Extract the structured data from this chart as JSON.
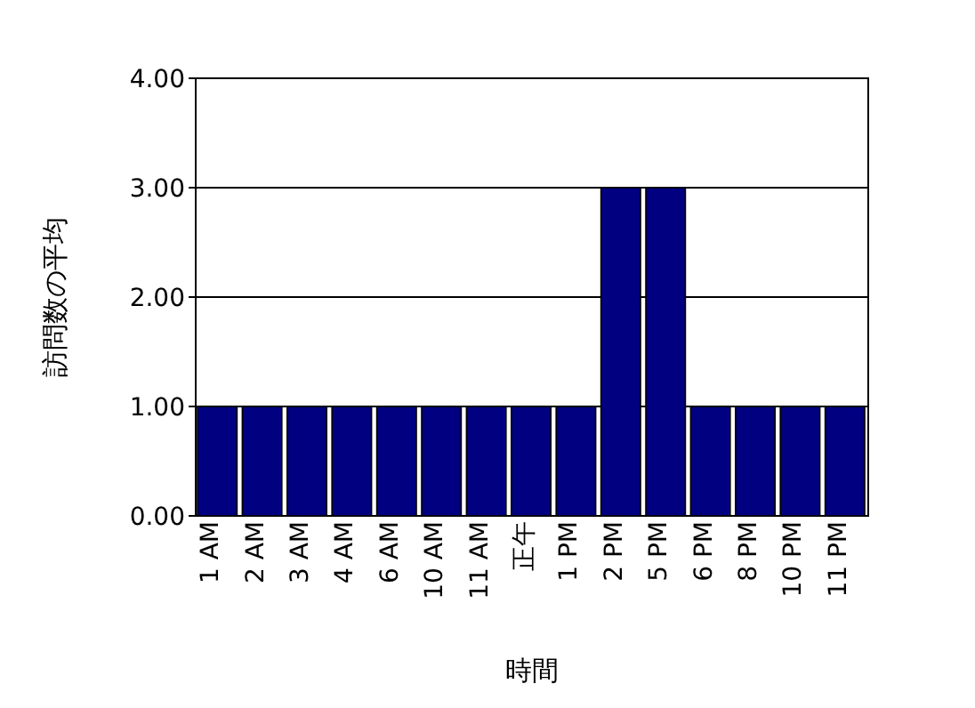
{
  "chart_data": {
    "type": "bar",
    "xlabel": "時間",
    "ylabel": "訪問数の平均",
    "categories": [
      "1 AM",
      "2 AM",
      "3 AM",
      "4 AM",
      "6 AM",
      "10 AM",
      "11 AM",
      "正午",
      "1 PM",
      "2 PM",
      "5 PM",
      "6 PM",
      "8 PM",
      "10 PM",
      "11 PM"
    ],
    "values": [
      1,
      1,
      1,
      1,
      1,
      1,
      1,
      1,
      1,
      3,
      3,
      1,
      1,
      1,
      1
    ],
    "color": "#000080",
    "ylim": [
      0,
      4
    ],
    "yticks": [
      {
        "value": 0,
        "label": "0.00"
      },
      {
        "value": 1,
        "label": "1.00"
      },
      {
        "value": 2,
        "label": "2.00"
      },
      {
        "value": 3,
        "label": "3.00"
      },
      {
        "value": 4,
        "label": "4.00"
      }
    ],
    "grid": "y"
  }
}
